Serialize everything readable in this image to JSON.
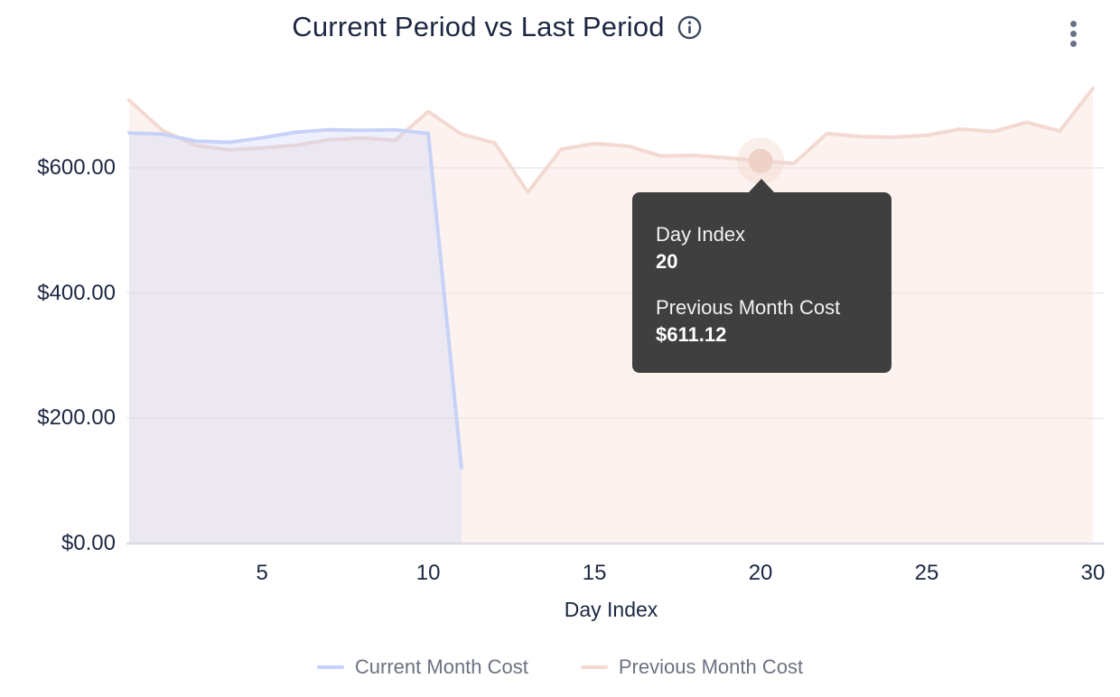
{
  "header": {
    "title": "Current Period vs Last Period"
  },
  "icons": {
    "info": "info-circle-icon",
    "menu": "kebab-menu-icon"
  },
  "colors": {
    "title_text": "#1d2742",
    "axis_text": "#1d2742",
    "legend_text": "#6b7280",
    "gridline": "#e9e9ed",
    "baseline": "#d8dce9",
    "current_line": "#c7d2f8",
    "current_fill": "rgba(199,210,250,0.30)",
    "previous_line": "#f3d9d1",
    "previous_fill": "rgba(247,224,217,0.42)",
    "hover_dot": "#eed2c8",
    "hover_halo": "rgba(243,214,204,0.40)",
    "tooltip_bg": "#3f3f3f"
  },
  "chart_data": {
    "type": "area",
    "title": "Current Period vs Last Period",
    "xlabel": "Day Index",
    "ylabel": "",
    "xlim": [
      1,
      30
    ],
    "ylim": [
      0,
      760
    ],
    "grid": true,
    "legend_position": "bottom",
    "x": [
      1,
      2,
      3,
      4,
      5,
      6,
      7,
      8,
      9,
      10,
      11,
      12,
      13,
      14,
      15,
      16,
      17,
      18,
      19,
      20,
      21,
      22,
      23,
      24,
      25,
      26,
      27,
      28,
      29,
      30
    ],
    "x_ticks": [
      5,
      10,
      15,
      20,
      25,
      30
    ],
    "y_ticks": [
      {
        "value": 0,
        "label": "$0.00"
      },
      {
        "value": 200,
        "label": "$200.00"
      },
      {
        "value": 400,
        "label": "$400.00"
      },
      {
        "value": 600,
        "label": "$600.00"
      }
    ],
    "series": [
      {
        "name": "Previous Month Cost",
        "values": [
          708,
          660,
          636,
          629,
          632,
          636,
          645,
          648,
          644,
          690,
          654,
          640,
          561,
          630,
          639,
          635,
          619,
          620,
          616,
          611.12,
          607,
          655,
          650,
          649,
          652,
          662,
          658,
          673,
          659,
          727
        ]
      },
      {
        "name": "Current Month Cost",
        "values": [
          656,
          654,
          643,
          641,
          648,
          657,
          661,
          660,
          661,
          655,
          121
        ]
      }
    ]
  },
  "tooltip": {
    "x_label": "Day Index",
    "x_value": "20",
    "series_label": "Previous Month Cost",
    "series_value": "$611.12",
    "anchor_day": 20,
    "anchor_value": 611.12
  },
  "legend": {
    "items": [
      {
        "label": "Current Month Cost"
      },
      {
        "label": "Previous Month Cost"
      }
    ]
  }
}
